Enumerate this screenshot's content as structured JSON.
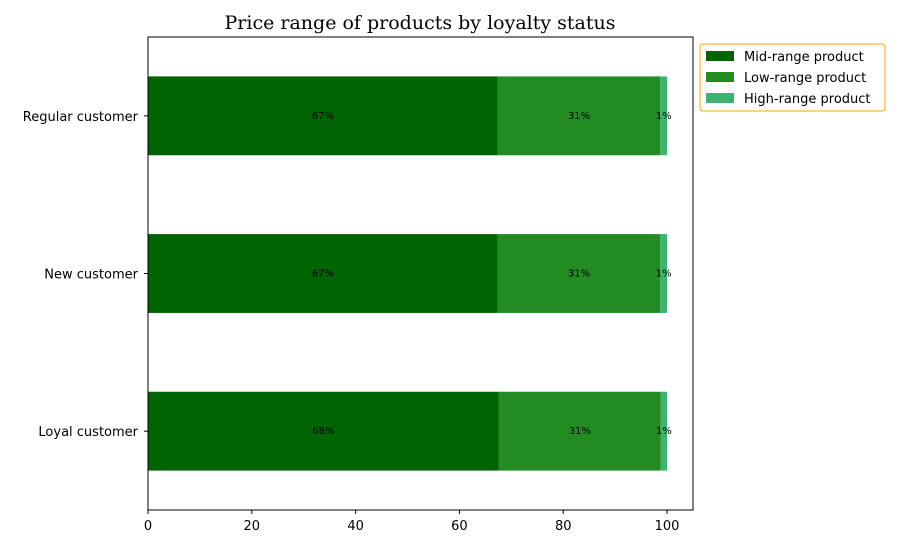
{
  "chart_data": {
    "type": "bar",
    "orientation": "horizontal",
    "stacked": true,
    "title": "Price range of products by loyalty status",
    "xlabel": "",
    "ylabel": "",
    "categories": [
      "Regular customer",
      "New customer",
      "Loyal customer"
    ],
    "series": [
      {
        "name": "Mid-range product",
        "color": "#006400",
        "values": [
          67.4,
          67.4,
          67.6
        ],
        "labels": [
          "67%",
          "67%",
          "68%"
        ]
      },
      {
        "name": "Low-range product",
        "color": "#228B22",
        "values": [
          31.3,
          31.3,
          31.2
        ],
        "labels": [
          "31%",
          "31%",
          "31%"
        ]
      },
      {
        "name": "High-range product",
        "color": "#3CB371",
        "values": [
          1.3,
          1.3,
          1.2
        ],
        "labels": [
          "1%",
          "1%",
          "1%"
        ]
      }
    ],
    "xlim": [
      0,
      105
    ],
    "xticks": [
      0,
      20,
      40,
      60,
      80,
      100
    ],
    "legend": {
      "placement": "top-right outside",
      "border_color": "#FFA500"
    },
    "grid": false
  }
}
